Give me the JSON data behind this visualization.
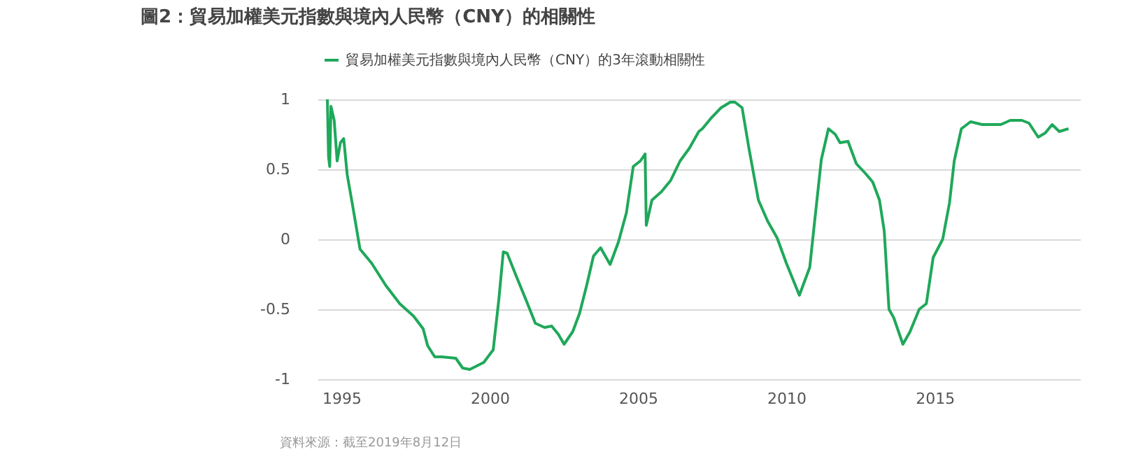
{
  "chart_data": {
    "type": "line",
    "title": "圖2：貿易加權美元指數與境內人民幣（CNY）的相關性",
    "x": [
      1994.53,
      1994.57,
      1994.61,
      1994.65,
      1994.76,
      1994.86,
      1994.97,
      1995.08,
      1995.2,
      1995.39,
      1995.63,
      1996.02,
      1996.5,
      1996.97,
      1997.44,
      1997.76,
      1997.91,
      1998.15,
      1998.39,
      1998.86,
      1999.09,
      1999.33,
      1999.8,
      2000.12,
      2000.31,
      2000.46,
      2000.59,
      2000.91,
      2001.22,
      2001.54,
      2001.85,
      2002.09,
      2002.32,
      2002.51,
      2002.8,
      2003.03,
      2003.27,
      2003.5,
      2003.74,
      2004.06,
      2004.34,
      2004.61,
      2004.84,
      2005.08,
      2005.24,
      2005.28,
      2005.47,
      2005.79,
      2006.1,
      2006.42,
      2006.73,
      2007.05,
      2007.17,
      2007.48,
      2007.8,
      2008.11,
      2008.27,
      2008.51,
      2008.74,
      2009.06,
      2009.37,
      2009.69,
      2010,
      2010.44,
      2010.79,
      2010.94,
      2011.18,
      2011.42,
      2011.65,
      2011.81,
      2012.08,
      2012.36,
      2012.67,
      2012.91,
      2013.14,
      2013.3,
      2013.46,
      2013.62,
      2013.93,
      2014.17,
      2014.48,
      2014.72,
      2014.95,
      2015.27,
      2015.5,
      2015.66,
      2015.9,
      2016.21,
      2016.6,
      2017.23,
      2017.55,
      2017.94,
      2018.18,
      2018.49,
      2018.73,
      2018.96,
      2019.2,
      2019.51
    ],
    "series": [
      {
        "name": "貿易加權美元指數與境內人民幣（CNY）的3年滾動相關性",
        "color": "#1fa85a",
        "values": [
          1.0,
          0.59,
          0.52,
          0.95,
          0.85,
          0.56,
          0.69,
          0.72,
          0.46,
          0.23,
          -0.07,
          -0.17,
          -0.33,
          -0.46,
          -0.55,
          -0.64,
          -0.76,
          -0.84,
          -0.84,
          -0.85,
          -0.92,
          -0.93,
          -0.88,
          -0.79,
          -0.43,
          -0.09,
          -0.1,
          -0.27,
          -0.43,
          -0.6,
          -0.63,
          -0.62,
          -0.68,
          -0.75,
          -0.66,
          -0.53,
          -0.33,
          -0.12,
          -0.06,
          -0.18,
          -0.02,
          0.19,
          0.52,
          0.56,
          0.61,
          0.1,
          0.28,
          0.34,
          0.42,
          0.56,
          0.65,
          0.77,
          0.79,
          0.87,
          0.94,
          0.98,
          0.98,
          0.94,
          0.65,
          0.28,
          0.13,
          0.01,
          -0.17,
          -0.4,
          -0.2,
          0.1,
          0.57,
          0.79,
          0.75,
          0.69,
          0.7,
          0.54,
          0.47,
          0.41,
          0.28,
          0.06,
          -0.5,
          -0.56,
          -0.75,
          -0.66,
          -0.5,
          -0.46,
          -0.13,
          0.0,
          0.26,
          0.56,
          0.79,
          0.84,
          0.82,
          0.82,
          0.85,
          0.85,
          0.83,
          0.73,
          0.76,
          0.82,
          0.77,
          0.79
        ]
      }
    ],
    "xlim": [
      1994.2,
      2019.9
    ],
    "xticks": [
      1995,
      2000,
      2005,
      2010,
      2015
    ],
    "ylim": [
      -1,
      1
    ],
    "yticks": [
      -1,
      -0.5,
      0,
      0.5,
      1
    ],
    "grid": "y",
    "legend": "top",
    "line_style": "solid",
    "marker": "none",
    "annotations": [
      "資料來源：截至2019年8月12日"
    ]
  }
}
